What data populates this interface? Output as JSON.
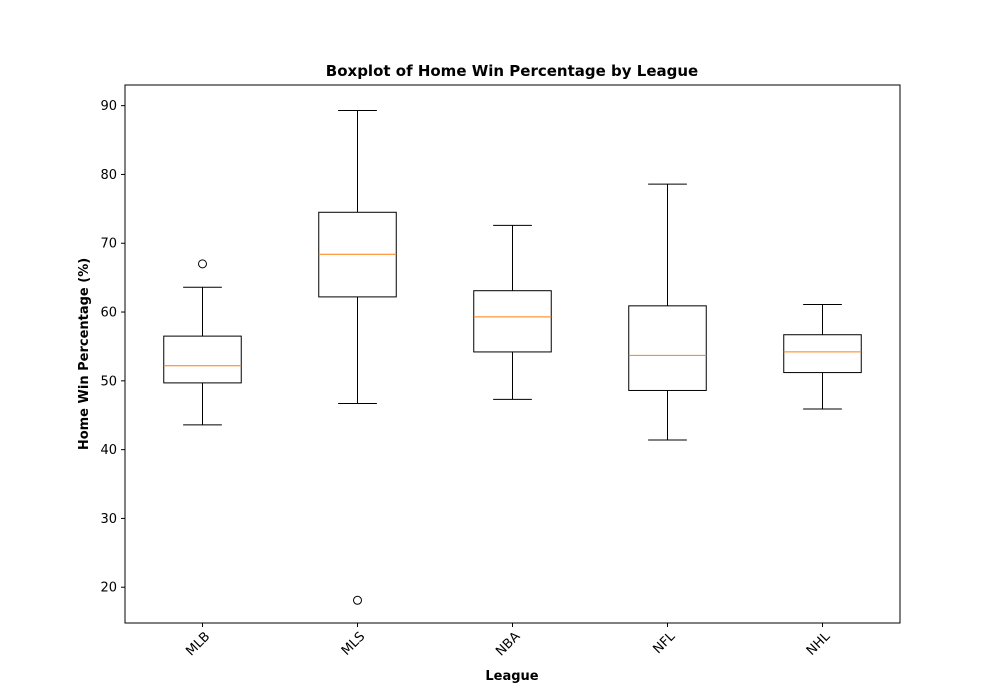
{
  "chart_data": {
    "type": "boxplot",
    "title": "Boxplot of Home Win Percentage by League",
    "xlabel": "League",
    "ylabel": "Home Win Percentage (%)",
    "ylim": [
      14.8,
      93.0
    ],
    "yticks": [
      20,
      30,
      40,
      50,
      60,
      70,
      80,
      90
    ],
    "categories": [
      "MLB",
      "MLS",
      "NBA",
      "NFL",
      "NHL"
    ],
    "grid": false,
    "boxes": [
      {
        "category": "MLB",
        "whisker_low": 43.6,
        "q1": 49.7,
        "median": 52.2,
        "q3": 56.5,
        "whisker_high": 63.6,
        "outliers": [
          67.0
        ]
      },
      {
        "category": "MLS",
        "whisker_low": 46.7,
        "q1": 62.2,
        "median": 68.4,
        "q3": 74.5,
        "whisker_high": 89.3,
        "outliers": [
          18.1
        ]
      },
      {
        "category": "NBA",
        "whisker_low": 47.3,
        "q1": 54.2,
        "median": 59.3,
        "q3": 63.1,
        "whisker_high": 72.6,
        "outliers": []
      },
      {
        "category": "NFL",
        "whisker_low": 41.4,
        "q1": 48.6,
        "median": 53.7,
        "q3": 60.9,
        "whisker_high": 78.6,
        "outliers": []
      },
      {
        "category": "NHL",
        "whisker_low": 45.9,
        "q1": 51.2,
        "median": 54.2,
        "q3": 56.7,
        "whisker_high": 61.1,
        "outliers": []
      }
    ],
    "colors": {
      "box": "#000000",
      "median": "#ff7f0e",
      "background": "#ffffff"
    }
  }
}
